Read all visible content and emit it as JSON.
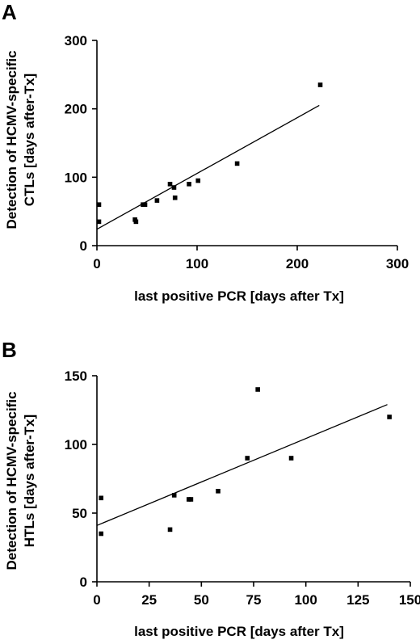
{
  "chart_data": [
    {
      "panel": "A",
      "type": "scatter",
      "xlabel": "last positive PCR [days after Tx]",
      "ylabel_lines": [
        "Detection of HCMV-specific",
        "CTLs [days after-Tx]"
      ],
      "xlim": [
        0,
        300
      ],
      "ylim": [
        0,
        300
      ],
      "xticks": [
        0,
        100,
        200,
        300
      ],
      "yticks": [
        0,
        100,
        200,
        300
      ],
      "points": [
        [
          2,
          60
        ],
        [
          2,
          35
        ],
        [
          38,
          38
        ],
        [
          39,
          35
        ],
        [
          46,
          60
        ],
        [
          48,
          60
        ],
        [
          60,
          66
        ],
        [
          73,
          90
        ],
        [
          77,
          85
        ],
        [
          78,
          70
        ],
        [
          92,
          90
        ],
        [
          101,
          95
        ],
        [
          140,
          120
        ],
        [
          223,
          235
        ]
      ],
      "fit": [
        [
          0,
          24
        ],
        [
          222,
          205
        ]
      ]
    },
    {
      "panel": "B",
      "type": "scatter",
      "xlabel": "last positive PCR [days after Tx]",
      "ylabel_lines": [
        "Detection of HCMV-specific",
        "HTLs [days after-Tx]"
      ],
      "xlim": [
        0,
        150
      ],
      "ylim": [
        0,
        150
      ],
      "xticks": [
        0,
        25,
        50,
        75,
        100,
        125,
        150
      ],
      "yticks": [
        0,
        50,
        100,
        150
      ],
      "points": [
        [
          2,
          61
        ],
        [
          2,
          35
        ],
        [
          35,
          38
        ],
        [
          37,
          63
        ],
        [
          44,
          60
        ],
        [
          45,
          60
        ],
        [
          58,
          66
        ],
        [
          72,
          90
        ],
        [
          77,
          140
        ],
        [
          93,
          90
        ],
        [
          140,
          120
        ]
      ],
      "fit": [
        [
          0,
          41
        ],
        [
          139,
          129
        ]
      ]
    }
  ]
}
